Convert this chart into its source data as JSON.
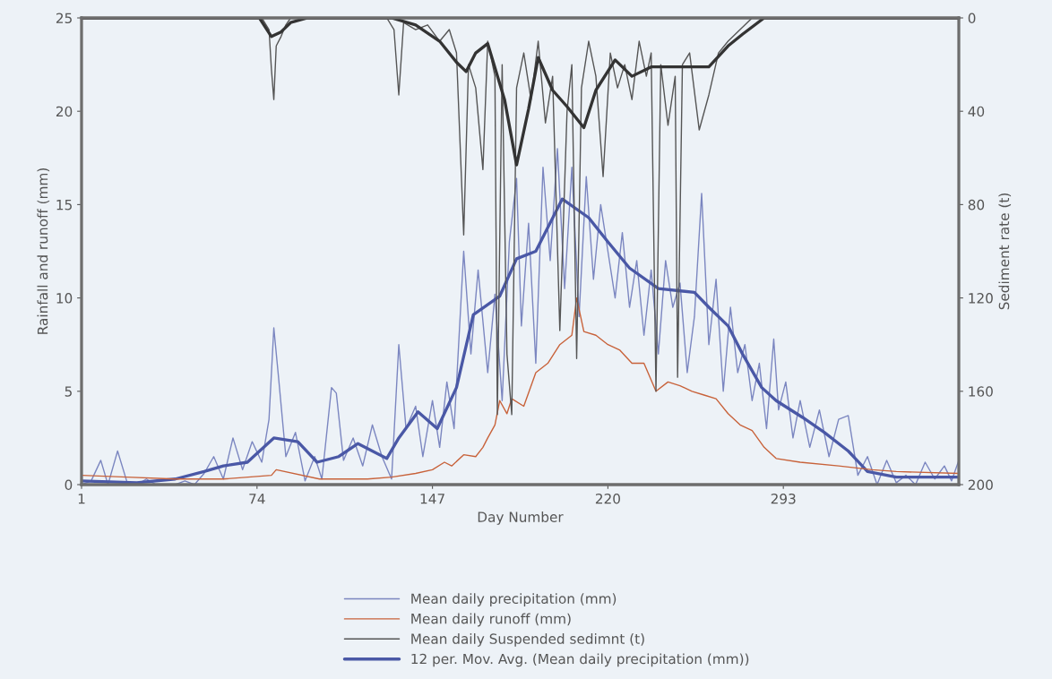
{
  "chart_data": {
    "type": "line",
    "xlabel": "Day Number",
    "ylabel": "Rainfall and runoff (mm)",
    "y2label": "Sediment rate (t)",
    "xlim": [
      1,
      366
    ],
    "xticks": [
      1,
      74,
      147,
      220,
      293
    ],
    "ylim": [
      0,
      25
    ],
    "yticks": [
      0,
      5,
      10,
      15,
      20,
      25
    ],
    "y2lim": [
      200,
      0
    ],
    "y2ticks": [
      0,
      40,
      80,
      120,
      160,
      200
    ],
    "grid": false,
    "legend": "bottom",
    "marker": "none",
    "line_style": "solid",
    "series": [
      {
        "name": "Mean daily precipitation (mm)",
        "color": "#7b86c0",
        "x": [
          1,
          5,
          9,
          12,
          16,
          20,
          24,
          28,
          32,
          36,
          40,
          44,
          48,
          52,
          56,
          60,
          64,
          68,
          72,
          76,
          79,
          81,
          83,
          86,
          90,
          94,
          98,
          101,
          105,
          107,
          110,
          114,
          118,
          122,
          126,
          130,
          133,
          136,
          140,
          143,
          147,
          150,
          153,
          156,
          160,
          163,
          166,
          170,
          173,
          176,
          179,
          182,
          184,
          187,
          190,
          193,
          196,
          199,
          202,
          205,
          208,
          211,
          214,
          217,
          220,
          223,
          226,
          229,
          232,
          235,
          238,
          241,
          244,
          247,
          250,
          253,
          256,
          259,
          262,
          265,
          268,
          271,
          274,
          277,
          280,
          283,
          286,
          289,
          291,
          294,
          297,
          300,
          304,
          308,
          312,
          316,
          320,
          324,
          328,
          332,
          336,
          340,
          344,
          348,
          352,
          356,
          360,
          363,
          366
        ],
        "values": [
          0,
          0.2,
          1.3,
          0,
          1.8,
          0.1,
          0,
          0.3,
          0,
          0,
          0,
          0.2,
          0,
          0.6,
          1.5,
          0.3,
          2.5,
          0.8,
          2.3,
          1.2,
          3.5,
          8.4,
          5.7,
          1.5,
          2.8,
          0.2,
          1.5,
          0.3,
          5.2,
          4.9,
          1.3,
          2.5,
          1.0,
          3.2,
          1.5,
          0.3,
          7.5,
          3.0,
          4.2,
          1.5,
          4.5,
          2.0,
          5.5,
          3.0,
          12.5,
          7.0,
          11.5,
          6.0,
          10.2,
          4.5,
          13.0,
          16.4,
          8.5,
          14.0,
          6.5,
          17.0,
          12.0,
          18.0,
          10.5,
          17.0,
          9.0,
          16.5,
          11.0,
          15.0,
          12.5,
          10.0,
          13.5,
          9.5,
          12.0,
          8.0,
          11.5,
          7.0,
          12.0,
          9.5,
          10.8,
          6.0,
          9.0,
          15.6,
          7.5,
          11.0,
          5.0,
          9.5,
          6.0,
          7.5,
          4.5,
          6.5,
          3.0,
          7.8,
          4.0,
          5.5,
          2.5,
          4.5,
          2.0,
          4.0,
          1.5,
          3.5,
          3.7,
          0.5,
          1.5,
          0,
          1.3,
          0.1,
          0.5,
          0,
          1.2,
          0.3,
          1.0,
          0.2,
          1.3
        ]
      },
      {
        "name": "Mean daily runoff (mm)",
        "color": "#c8623a",
        "x": [
          1,
          20,
          40,
          60,
          80,
          82,
          100,
          120,
          130,
          140,
          147,
          152,
          155,
          160,
          165,
          168,
          170,
          173,
          175,
          178,
          180,
          185,
          190,
          195,
          200,
          205,
          207,
          210,
          215,
          220,
          225,
          230,
          235,
          240,
          245,
          250,
          255,
          260,
          265,
          270,
          275,
          280,
          285,
          290,
          300,
          316,
          330,
          340,
          366
        ],
        "values": [
          0.5,
          0.4,
          0.3,
          0.3,
          0.5,
          0.8,
          0.3,
          0.3,
          0.4,
          0.6,
          0.8,
          1.2,
          1.0,
          1.6,
          1.5,
          2.0,
          2.5,
          3.2,
          4.5,
          3.8,
          4.6,
          4.2,
          6.0,
          6.5,
          7.5,
          8.0,
          10.0,
          8.2,
          8.0,
          7.5,
          7.2,
          6.5,
          6.5,
          5.0,
          5.5,
          5.3,
          5.0,
          4.8,
          4.6,
          3.8,
          3.2,
          2.9,
          2.0,
          1.4,
          1.2,
          1.0,
          0.8,
          0.7,
          0.6
        ]
      },
      {
        "name": "Mean daily Suspended sedimnt (t)",
        "color": "#555555",
        "axis": "y2",
        "x": [
          1,
          20,
          40,
          60,
          76,
          79,
          80,
          81,
          82,
          84,
          86,
          88,
          92,
          100,
          110,
          120,
          128,
          131,
          133,
          135,
          140,
          145,
          150,
          154,
          157,
          160,
          162,
          165,
          168,
          170,
          173,
          174,
          176,
          178,
          180,
          182,
          185,
          188,
          191,
          194,
          197,
          200,
          203,
          205,
          207,
          209,
          212,
          215,
          218,
          221,
          224,
          227,
          230,
          233,
          236,
          238,
          240,
          242,
          245,
          248,
          249,
          251,
          254,
          258,
          262,
          266,
          270,
          275,
          280,
          285,
          300,
          330,
          366
        ],
        "values": [
          0,
          0,
          0,
          0,
          0,
          5,
          22,
          35,
          12,
          8,
          3,
          0,
          0,
          0,
          0,
          0,
          0,
          5,
          33,
          2,
          5,
          3,
          10,
          5,
          15,
          93,
          20,
          30,
          65,
          10,
          25,
          170,
          20,
          144,
          170,
          30,
          15,
          35,
          10,
          45,
          25,
          134,
          40,
          20,
          146,
          30,
          10,
          25,
          68,
          15,
          30,
          20,
          35,
          10,
          25,
          15,
          160,
          20,
          46,
          25,
          154,
          20,
          15,
          48,
          33,
          15,
          10,
          5,
          0,
          0,
          0,
          0,
          0
        ]
      },
      {
        "name": "12 per. Mov. Avg. (Mean daily precipitation (mm))",
        "color": "#4a58a6",
        "x": [
          1,
          24,
          40,
          52,
          60,
          70,
          81,
          91,
          99,
          108,
          116,
          128,
          133,
          141,
          149,
          157,
          164,
          175,
          182,
          190,
          201,
          212,
          220,
          229,
          241,
          256,
          262,
          270,
          276,
          284,
          290,
          301,
          310,
          320,
          328,
          340,
          366
        ],
        "values": [
          0.2,
          0.1,
          0.3,
          0.7,
          1.0,
          1.2,
          2.5,
          2.3,
          1.2,
          1.5,
          2.2,
          1.4,
          2.5,
          3.9,
          3.0,
          5.2,
          9.1,
          10.1,
          12.1,
          12.5,
          15.3,
          14.3,
          13.0,
          11.6,
          10.5,
          10.3,
          9.5,
          8.5,
          7.0,
          5.2,
          4.5,
          3.6,
          2.8,
          1.8,
          0.7,
          0.4,
          0.4
        ]
      },
      {
        "color": "#333333",
        "axis": "y2",
        "x": [
          1,
          75,
          80,
          84,
          88,
          95,
          130,
          140,
          150,
          157,
          161,
          165,
          170,
          177,
          182,
          187,
          191,
          197,
          203,
          210,
          215,
          223,
          230,
          238,
          248,
          262,
          270,
          276,
          285,
          366
        ],
        "values": [
          0,
          0,
          8,
          6,
          2,
          0,
          0,
          3,
          10,
          19,
          23,
          15,
          11,
          35,
          63,
          39,
          17,
          31,
          38,
          47,
          31,
          18,
          25,
          21,
          21,
          21,
          12,
          7,
          0,
          0
        ]
      }
    ]
  }
}
